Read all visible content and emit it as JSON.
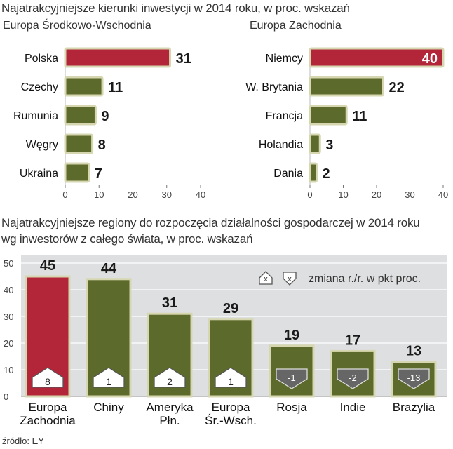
{
  "title1": "Najatrakcyjniejsze kierunki inwestycji w 2014 roku, w proc. wskazań",
  "title2_line1": "Najatrakcyjniejsze regiony do rozpoczęcia działalności gospodarczej w 2014 roku",
  "title2_line2": "wg inwestorów z całego świata, w proc. wskazań",
  "source": "źródło: EY",
  "colors": {
    "highlight": "#b3263a",
    "normal": "#5c6a2b",
    "bar_outline": "#d6d7b0",
    "panel": "#dedfe0",
    "badge": "#ffffff",
    "badge_dark": "#555555"
  },
  "chart_data": [
    {
      "type": "bar",
      "orientation": "horizontal",
      "title": "Europa Środkowo-Wschodnia",
      "categories": [
        "Polska",
        "Czechy",
        "Rumunia",
        "Węgry",
        "Ukraina"
      ],
      "values": [
        31,
        11,
        9,
        8,
        7
      ],
      "highlight": [
        true,
        false,
        false,
        false,
        false
      ],
      "xlim": [
        0,
        40
      ],
      "xticks": [
        0,
        10,
        20,
        30,
        40
      ]
    },
    {
      "type": "bar",
      "orientation": "horizontal",
      "title": "Europa Zachodnia",
      "categories": [
        "Niemcy",
        "W. Brytania",
        "Francja",
        "Holandia",
        "Dania"
      ],
      "values": [
        40,
        22,
        11,
        3,
        2
      ],
      "highlight": [
        true,
        false,
        false,
        false,
        false
      ],
      "xlim": [
        0,
        40
      ],
      "xticks": [
        0,
        10,
        20,
        30,
        40
      ]
    },
    {
      "type": "bar",
      "orientation": "vertical",
      "categories": [
        "Europa\nZachodnia",
        "Chiny",
        "Ameryka\nPłn.",
        "Europa\nŚr.-Wsch.",
        "Rosja",
        "Indie",
        "Brazylia"
      ],
      "values": [
        45,
        44,
        31,
        29,
        19,
        17,
        13
      ],
      "change_yoy": [
        8,
        1,
        2,
        1,
        -1,
        -2,
        -13
      ],
      "change_labels": [
        "8",
        "1",
        "2",
        "1",
        "-1",
        "-2",
        "-13"
      ],
      "highlight": [
        true,
        false,
        false,
        false,
        false,
        false,
        false
      ],
      "ylim": [
        0,
        50
      ],
      "yticks": [
        0,
        10,
        20,
        30,
        40,
        50
      ],
      "legend": {
        "symbol": "x",
        "label": "zmiana r./r. w pkt proc.",
        "position": "top-right"
      }
    }
  ]
}
